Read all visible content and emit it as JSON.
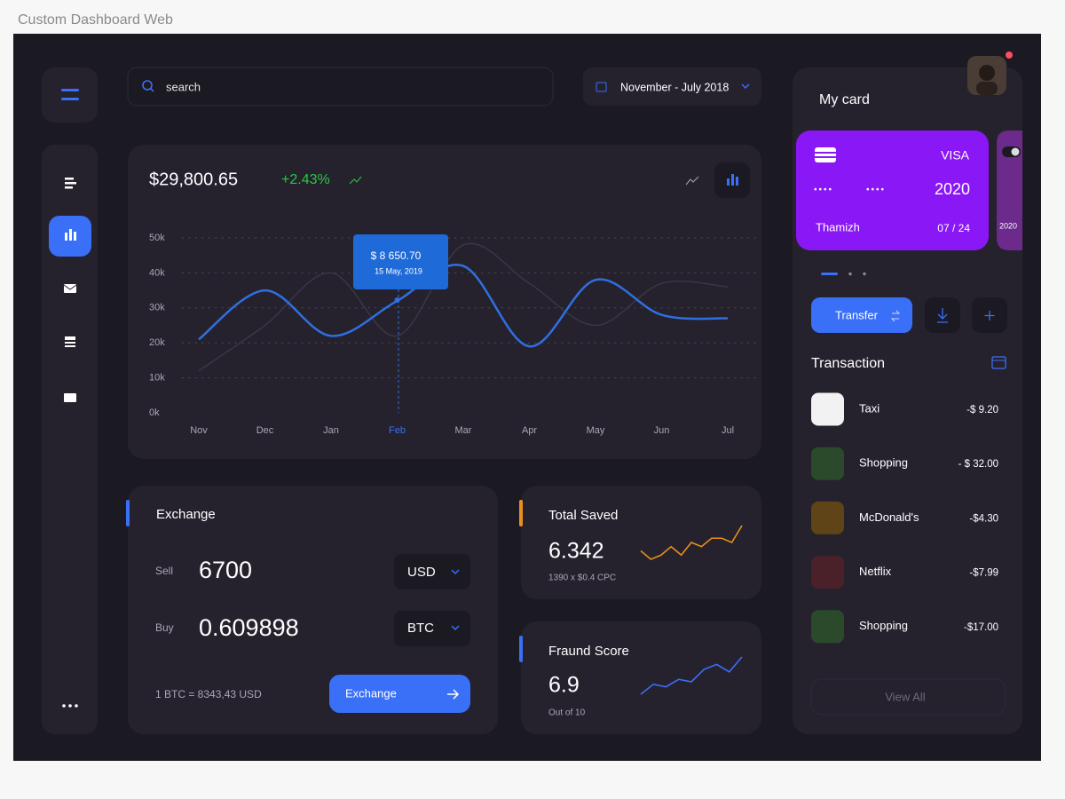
{
  "page_title": "Custom Dashboard Web",
  "search_placeholder": "search",
  "date_range": "November - July 2018",
  "balance": {
    "amount": "$29,800.65",
    "change": "+2.43%"
  },
  "chart_data": {
    "type": "line",
    "categories": [
      "Nov",
      "Dec",
      "Jan",
      "Feb",
      "Mar",
      "Apr",
      "May",
      "Jun",
      "Jul"
    ],
    "series": [
      {
        "color": "#3a3744",
        "values": [
          12000,
          25000,
          40000,
          22000,
          48000,
          37000,
          25000,
          37000,
          36000
        ]
      },
      {
        "color": "#2f6fe0",
        "values": [
          21000,
          35000,
          22000,
          32000,
          42000,
          19000,
          38000,
          28000,
          27000
        ]
      }
    ],
    "ylim": [
      0,
      50000
    ],
    "yticks": [
      {
        "value": 0,
        "label": "0k"
      },
      {
        "value": 10000,
        "label": "10k"
      },
      {
        "value": 20000,
        "label": "20k"
      },
      {
        "value": 30000,
        "label": "30k"
      },
      {
        "value": 40000,
        "label": "40k"
      },
      {
        "value": 50000,
        "label": "50k"
      }
    ],
    "grid": true,
    "tooltip": {
      "value": "$ 8 650.70",
      "date": "15 May, 2019"
    }
  },
  "exchange": {
    "title": "Exchange",
    "sell_label": "Sell",
    "sell_value": "6700",
    "sell_currency": "USD",
    "buy_label": "Buy",
    "buy_value": "0.609898",
    "buy_currency": "BTC",
    "rate": "1 BTC = 8343,43  USD",
    "button": "Exchange"
  },
  "total_saved": {
    "title": "Total Saved",
    "value": "6.342",
    "note": "1390 x $0.4 CPC",
    "color": "#e8901a",
    "trend": [
      3,
      1,
      2,
      4,
      2,
      5,
      4,
      6,
      6,
      5,
      9
    ]
  },
  "fraud_score": {
    "title": "Fraund Score",
    "value": "6.9",
    "note": "Out of 10",
    "color": "#3a6ff7",
    "trend": [
      1,
      3,
      2.5,
      4,
      3.5,
      6,
      7,
      5.5,
      8.5
    ]
  },
  "my_card": {
    "title": "My card",
    "cards": [
      {
        "brand": "VISA",
        "number_groups": [
          "••••",
          "••••"
        ],
        "year": "2020",
        "holder": "Thamizh",
        "expiry": "07 / 24"
      },
      {
        "year": "2020"
      }
    ],
    "transfer": "Transfer"
  },
  "transactions": {
    "title": "Transaction",
    "items": [
      {
        "name": "Taxi",
        "amount": "-$ 9.20",
        "color": "#f2f2f2"
      },
      {
        "name": "Shopping",
        "amount": "- $ 32.00",
        "color": "#2b4a2c"
      },
      {
        "name": "McDonald's",
        "amount": "-$4.30",
        "color": "#5e4416"
      },
      {
        "name": "Netflix",
        "amount": "-$7.99",
        "color": "#4a2128"
      },
      {
        "name": "Shopping",
        "amount": "-$17.00",
        "color": "#2b4a2c"
      }
    ],
    "view_all": "View All"
  }
}
